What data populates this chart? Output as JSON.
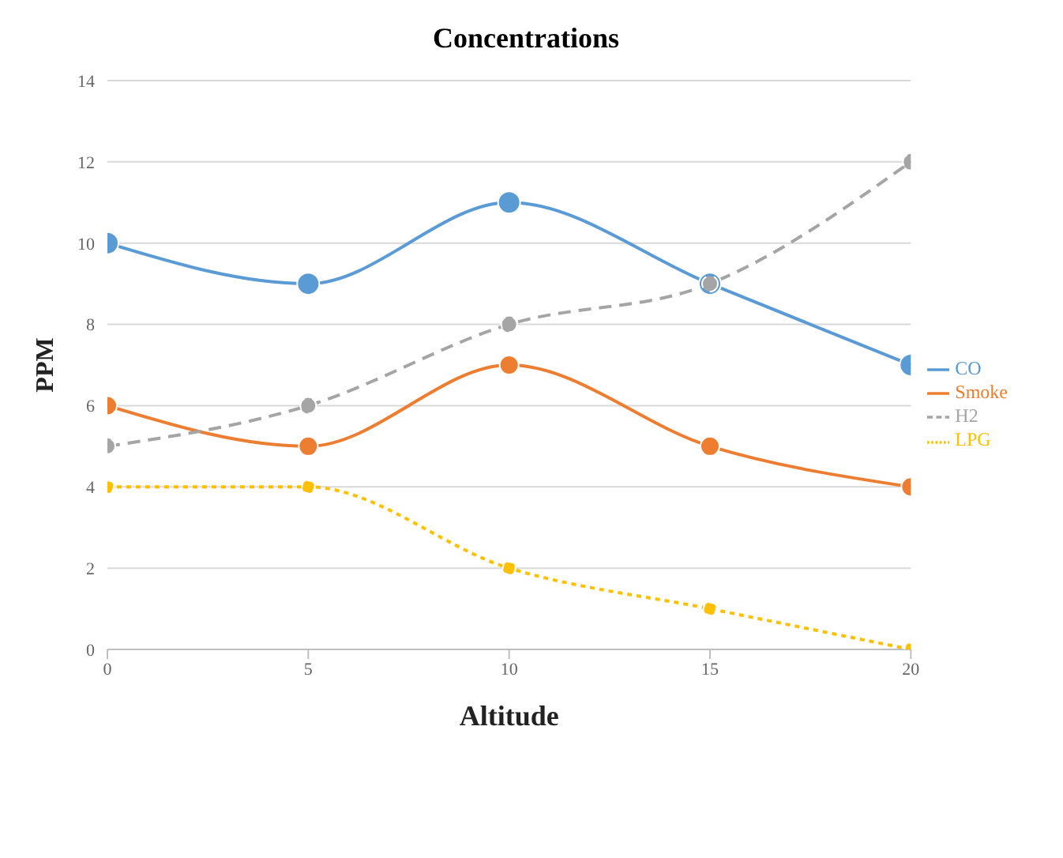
{
  "chart_data": {
    "type": "line",
    "title": "Concentrations",
    "xlabel": "Altitude",
    "ylabel": "PPM",
    "x": [
      0,
      5,
      10,
      15,
      20
    ],
    "series": [
      {
        "name": "CO",
        "color": "#5b9bd5",
        "values": [
          10,
          9,
          11,
          9,
          7
        ],
        "line_style": "solid"
      },
      {
        "name": "Smoke",
        "color": "#ed7d31",
        "values": [
          6,
          5,
          7,
          5,
          4
        ],
        "line_style": "solid"
      },
      {
        "name": "H2",
        "color": "#a5a5a5",
        "values": [
          5,
          6,
          8,
          9,
          12
        ],
        "line_style": "dashed"
      },
      {
        "name": "LPG",
        "color": "#ffc000",
        "values": [
          4,
          4,
          2,
          1,
          0
        ],
        "line_style": "dotted"
      }
    ],
    "xlim": [
      0,
      20
    ],
    "xticks": [
      0,
      5,
      10,
      15,
      20
    ],
    "ylim": [
      0,
      14
    ],
    "yticks": [
      0,
      2,
      4,
      6,
      8,
      10,
      12,
      14
    ],
    "grid": "y",
    "legend": "right",
    "marker": "circle"
  }
}
